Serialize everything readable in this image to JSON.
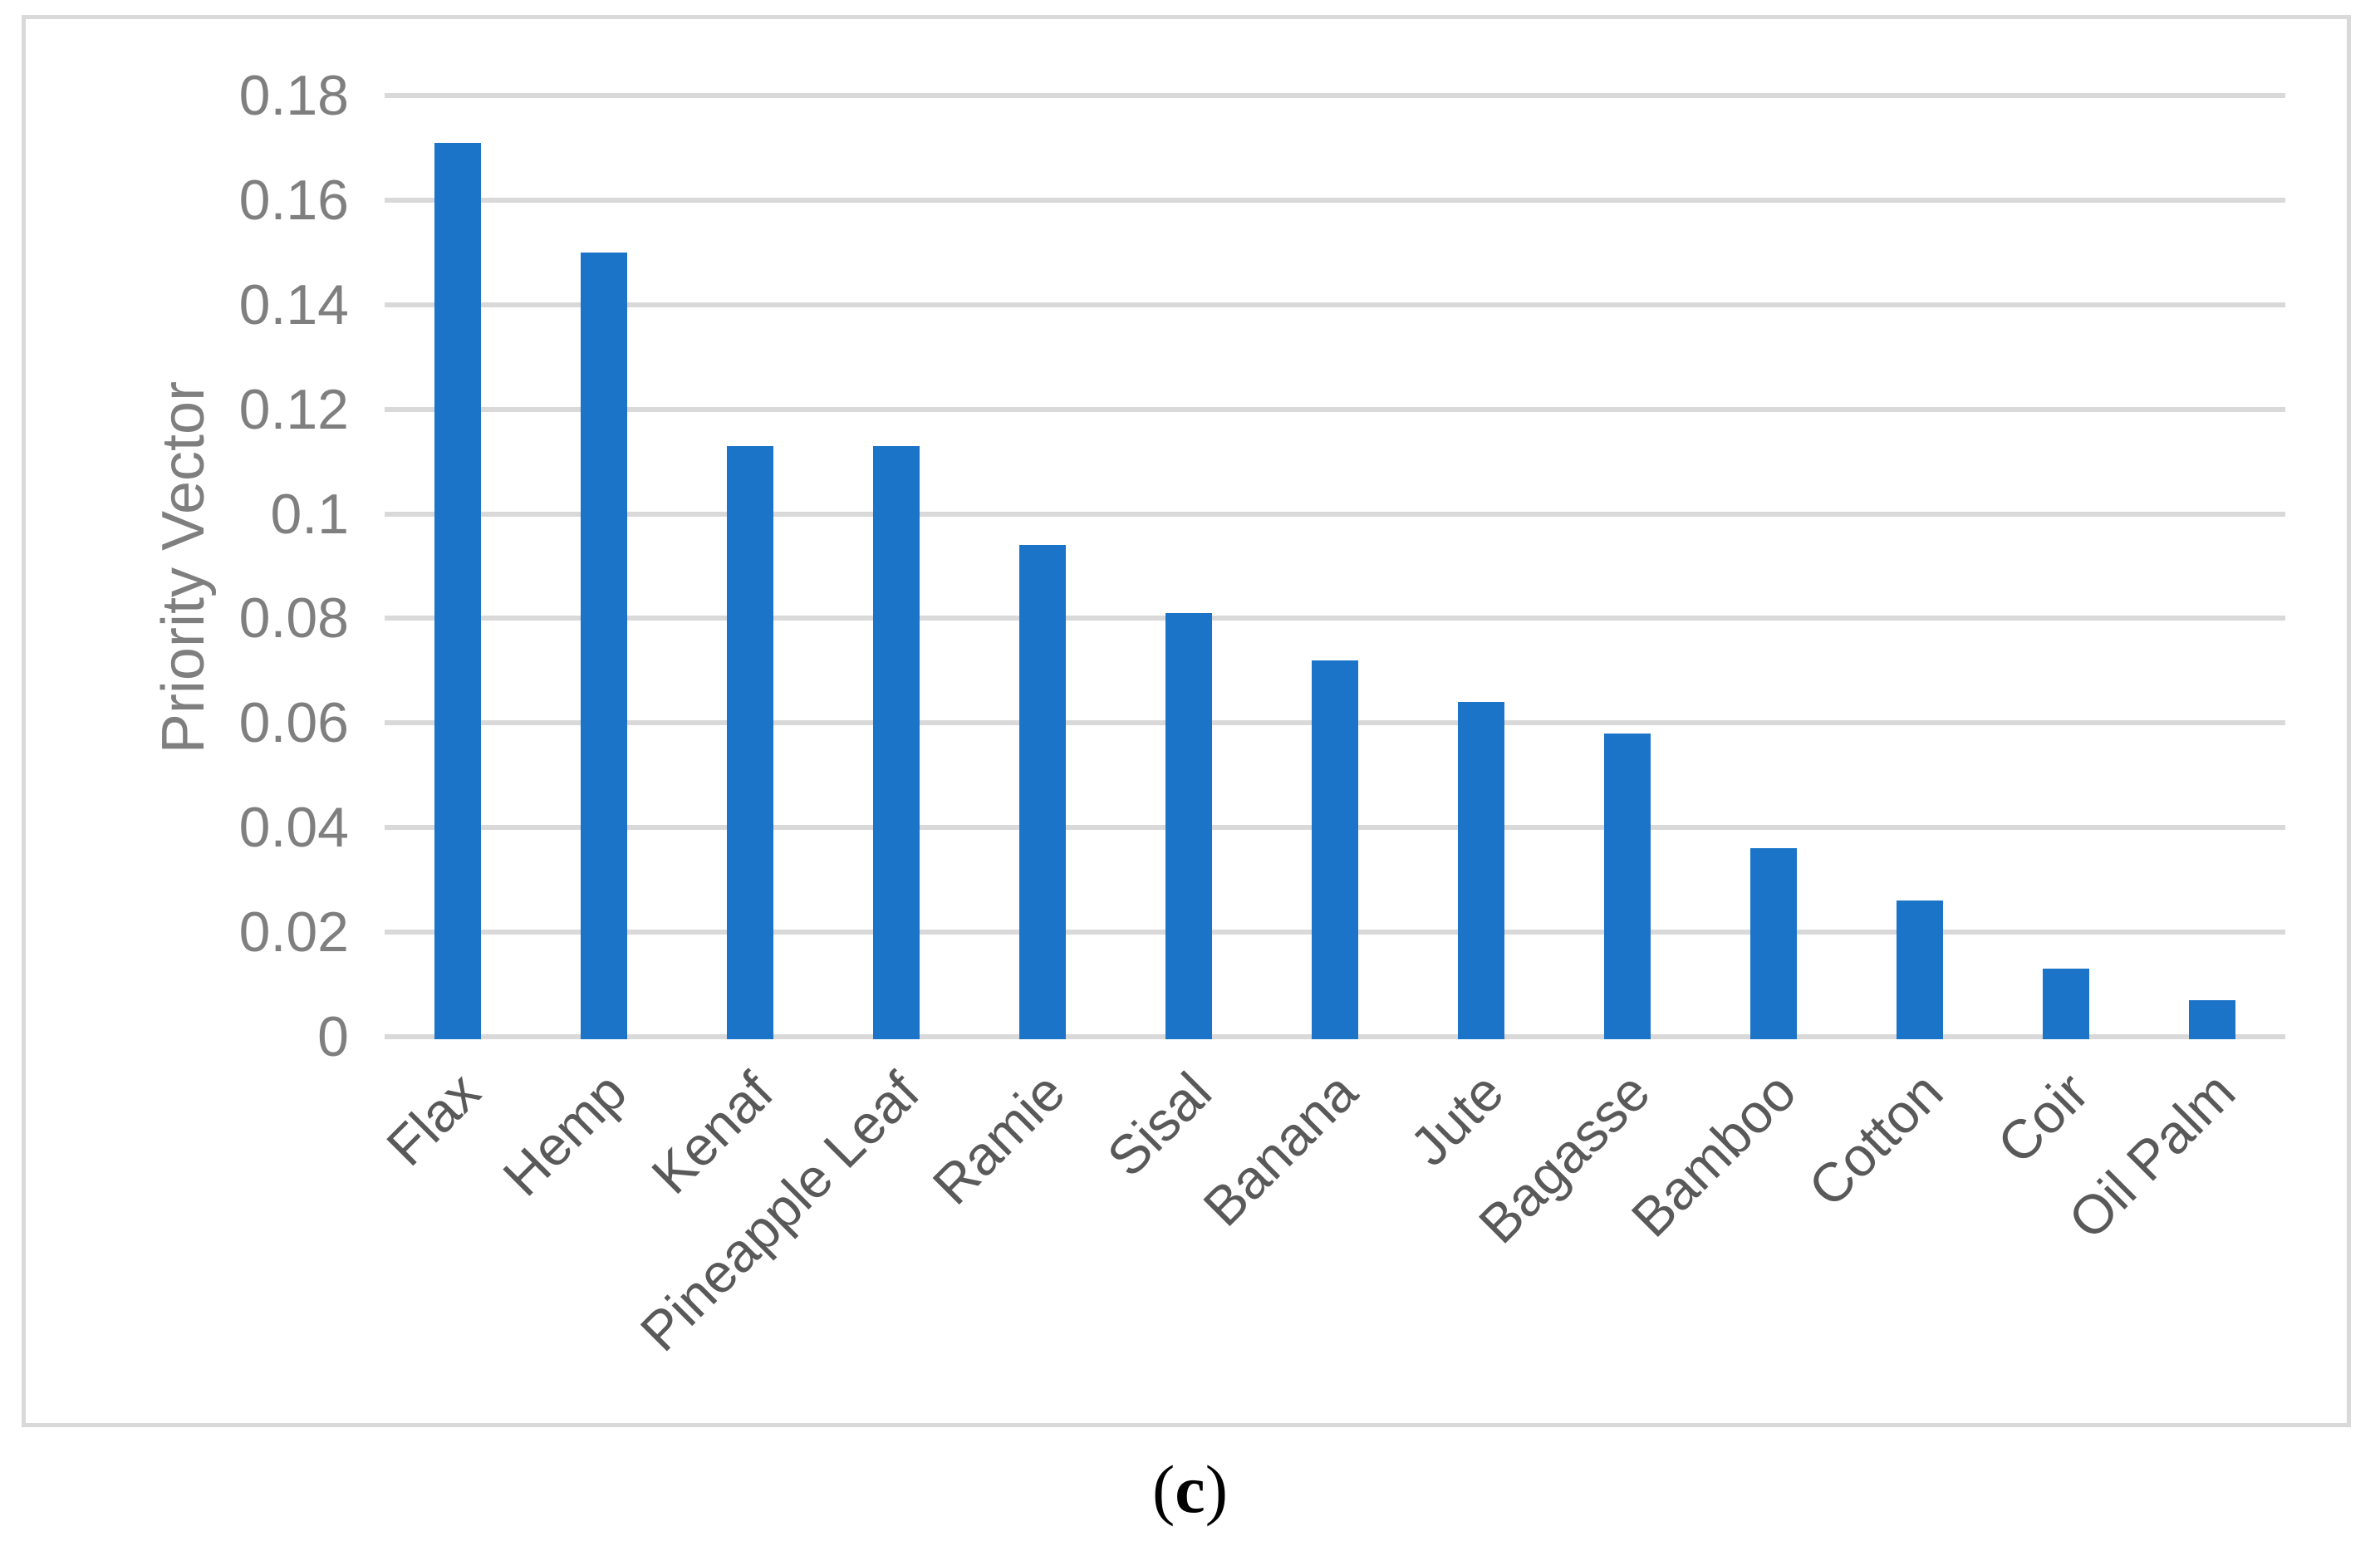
{
  "figure": {
    "caption_open": "(",
    "caption_letter": "c",
    "caption_close": ")"
  },
  "chart_data": {
    "type": "bar",
    "title": "",
    "xlabel": "",
    "ylabel": "Priority Vector",
    "categories": [
      "Flax",
      "Hemp",
      "Kenaf",
      "Pineapple Leaf",
      "Ramie",
      "Sisal",
      "Banana",
      "Jute",
      "Bagasse",
      "Bamboo",
      "Cotton",
      "Coir",
      "Oil Palm"
    ],
    "values": [
      0.171,
      0.15,
      0.113,
      0.113,
      0.094,
      0.081,
      0.072,
      0.064,
      0.058,
      0.036,
      0.026,
      0.013,
      0.007
    ],
    "ylim": [
      0,
      0.18
    ],
    "yticks": [
      {
        "value": 0.18,
        "label": "0.18"
      },
      {
        "value": 0.16,
        "label": "0.16"
      },
      {
        "value": 0.14,
        "label": "0.14"
      },
      {
        "value": 0.12,
        "label": "0.12"
      },
      {
        "value": 0.1,
        "label": "0.1"
      },
      {
        "value": 0.08,
        "label": "0.08"
      },
      {
        "value": 0.06,
        "label": "0.06"
      },
      {
        "value": 0.04,
        "label": "0.04"
      },
      {
        "value": 0.02,
        "label": "0.02"
      },
      {
        "value": 0.0,
        "label": "0"
      }
    ],
    "grid": true,
    "legend": false,
    "bar_color": "#1B74C8",
    "gridline_color": "#D9D9D9",
    "axis_text_color": "#7F7F7F",
    "category_text_color": "#595959"
  }
}
